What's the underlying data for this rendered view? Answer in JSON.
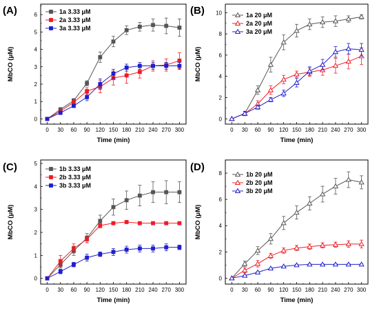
{
  "chart_data": [
    {
      "panel": "(A)",
      "type": "line",
      "xlabel": "Time (min)",
      "ylabel": "MbCO (μM)",
      "x": [
        0,
        30,
        60,
        90,
        120,
        150,
        180,
        210,
        240,
        270,
        300
      ],
      "xticks": [
        0,
        30,
        60,
        90,
        120,
        150,
        180,
        210,
        240,
        270,
        300
      ],
      "ylim": [
        -0.3,
        6.6
      ],
      "yticks": [
        0,
        1,
        2,
        3,
        4,
        5,
        6
      ],
      "marker": "square",
      "legend_position": "top-left",
      "series": [
        {
          "name": "1a 3.33 μM",
          "color": "#555555",
          "values": [
            0,
            0.55,
            1.05,
            2.05,
            3.55,
            4.45,
            5.1,
            5.3,
            5.4,
            5.35,
            5.25
          ],
          "errors": [
            0,
            0.1,
            0.12,
            0.15,
            0.3,
            0.3,
            0.25,
            0.25,
            0.35,
            0.45,
            0.5
          ]
        },
        {
          "name": "2a 3.33 μM",
          "color": "#ee1c25",
          "values": [
            0,
            0.45,
            0.95,
            1.6,
            1.85,
            2.35,
            2.5,
            2.7,
            3.05,
            3.1,
            3.35
          ],
          "errors": [
            0,
            0.1,
            0.15,
            0.2,
            0.35,
            0.4,
            0.45,
            0.35,
            0.3,
            0.35,
            0.45
          ]
        },
        {
          "name": "3a 3.33 μM",
          "color": "#1f1fcc",
          "values": [
            0,
            0.35,
            0.75,
            1.25,
            2.0,
            2.6,
            2.95,
            3.05,
            3.05,
            3.05,
            3.05
          ],
          "errors": [
            0,
            0.1,
            0.1,
            0.2,
            0.3,
            0.25,
            0.2,
            0.2,
            0.2,
            0.2,
            0.2
          ]
        }
      ]
    },
    {
      "panel": "(B)",
      "type": "line",
      "xlabel": "Time (min)",
      "ylabel": "MbCO (μM)",
      "x": [
        0,
        30,
        60,
        90,
        120,
        150,
        180,
        210,
        240,
        270,
        300
      ],
      "xticks": [
        0,
        30,
        60,
        90,
        120,
        150,
        180,
        210,
        240,
        270,
        300
      ],
      "ylim": [
        -0.5,
        10.8
      ],
      "yticks": [
        0,
        2,
        4,
        6,
        8,
        10
      ],
      "marker": "triangle",
      "legend_position": "top-left",
      "series": [
        {
          "name": "1a 20 μM",
          "color": "#555555",
          "values": [
            0,
            0.5,
            2.7,
            5.1,
            7.2,
            8.3,
            8.9,
            9.1,
            9.2,
            9.4,
            9.6
          ],
          "errors": [
            0,
            0.2,
            0.4,
            0.7,
            0.7,
            0.6,
            0.5,
            0.5,
            0.5,
            0.3,
            0.2
          ]
        },
        {
          "name": "2a 20 μM",
          "color": "#ee1c25",
          "values": [
            0,
            0.5,
            1.4,
            2.7,
            3.7,
            4.2,
            4.4,
            4.6,
            5.0,
            5.4,
            5.9
          ],
          "errors": [
            0,
            0.2,
            0.3,
            0.4,
            0.4,
            0.3,
            0.4,
            0.5,
            0.7,
            0.7,
            0.8
          ]
        },
        {
          "name": "3a 20 μM",
          "color": "#1f1fcc",
          "values": [
            0,
            0.5,
            1.1,
            1.8,
            2.4,
            3.4,
            4.5,
            5.1,
            6.3,
            6.6,
            6.5
          ],
          "errors": [
            0,
            0.2,
            0.2,
            0.2,
            0.3,
            0.4,
            0.4,
            0.5,
            0.5,
            0.5,
            0.6
          ]
        }
      ]
    },
    {
      "panel": "(C)",
      "type": "line",
      "xlabel": "Time (min)",
      "ylabel": "MbCO (μM)",
      "x": [
        0,
        30,
        60,
        90,
        120,
        150,
        180,
        210,
        240,
        270,
        300
      ],
      "xticks": [
        0,
        30,
        60,
        90,
        120,
        150,
        180,
        210,
        240,
        270,
        300
      ],
      "ylim": [
        -0.25,
        5.15
      ],
      "yticks": [
        0,
        1,
        2,
        3,
        4,
        5
      ],
      "marker": "square",
      "legend_position": "top-left",
      "series": [
        {
          "name": "1b 3.33 μM",
          "color": "#555555",
          "values": [
            0,
            0.6,
            1.2,
            1.75,
            2.5,
            3.1,
            3.4,
            3.6,
            3.75,
            3.75,
            3.75
          ],
          "errors": [
            0,
            0.15,
            0.2,
            0.2,
            0.25,
            0.35,
            0.4,
            0.45,
            0.45,
            0.5,
            0.45
          ]
        },
        {
          "name": "2b 3.33 μM",
          "color": "#ee1c25",
          "values": [
            0,
            0.75,
            1.3,
            1.7,
            2.3,
            2.4,
            2.45,
            2.4,
            2.4,
            2.4,
            2.4
          ],
          "errors": [
            0,
            0.25,
            0.2,
            0.15,
            0.1,
            0.05,
            0.05,
            0.05,
            0.05,
            0.05,
            0.05
          ]
        },
        {
          "name": "3b 3.33 μM",
          "color": "#1f1fcc",
          "values": [
            0,
            0.3,
            0.6,
            0.9,
            1.05,
            1.15,
            1.25,
            1.3,
            1.3,
            1.35,
            1.35
          ],
          "errors": [
            0,
            0.1,
            0.1,
            0.15,
            0.1,
            0.15,
            0.15,
            0.15,
            0.15,
            0.15,
            0.1
          ]
        }
      ]
    },
    {
      "panel": "(D)",
      "type": "line",
      "xlabel": "Time (min)",
      "ylabel": "MbCO (μM)",
      "x": [
        0,
        30,
        60,
        90,
        120,
        150,
        180,
        210,
        240,
        270,
        300
      ],
      "xticks": [
        0,
        30,
        60,
        90,
        120,
        150,
        180,
        210,
        240,
        270,
        300
      ],
      "ylim": [
        -0.45,
        9.0
      ],
      "yticks": [
        0,
        2,
        4,
        6,
        8
      ],
      "marker": "triangle",
      "legend_position": "top-left",
      "series": [
        {
          "name": "1b 20 μM",
          "color": "#555555",
          "values": [
            0,
            1.1,
            2.1,
            3.0,
            4.2,
            5.0,
            5.7,
            6.4,
            7.0,
            7.5,
            7.3
          ],
          "errors": [
            0,
            0.2,
            0.3,
            0.4,
            0.5,
            0.5,
            0.5,
            0.6,
            0.6,
            0.6,
            0.5
          ]
        },
        {
          "name": "2b 20 μM",
          "color": "#ee1c25",
          "values": [
            0,
            0.6,
            1.1,
            1.7,
            2.1,
            2.3,
            2.4,
            2.5,
            2.55,
            2.6,
            2.6
          ],
          "errors": [
            0,
            0.2,
            0.25,
            0.2,
            0.2,
            0.2,
            0.2,
            0.2,
            0.2,
            0.25,
            0.3
          ]
        },
        {
          "name": "3b 20 μM",
          "color": "#1f1fcc",
          "values": [
            0,
            0.2,
            0.45,
            0.75,
            0.9,
            1.0,
            1.05,
            1.05,
            1.05,
            1.05,
            1.05
          ],
          "errors": [
            0,
            0.05,
            0.05,
            0.05,
            0.05,
            0.05,
            0.05,
            0.05,
            0.05,
            0.05,
            0.05
          ]
        }
      ]
    }
  ]
}
